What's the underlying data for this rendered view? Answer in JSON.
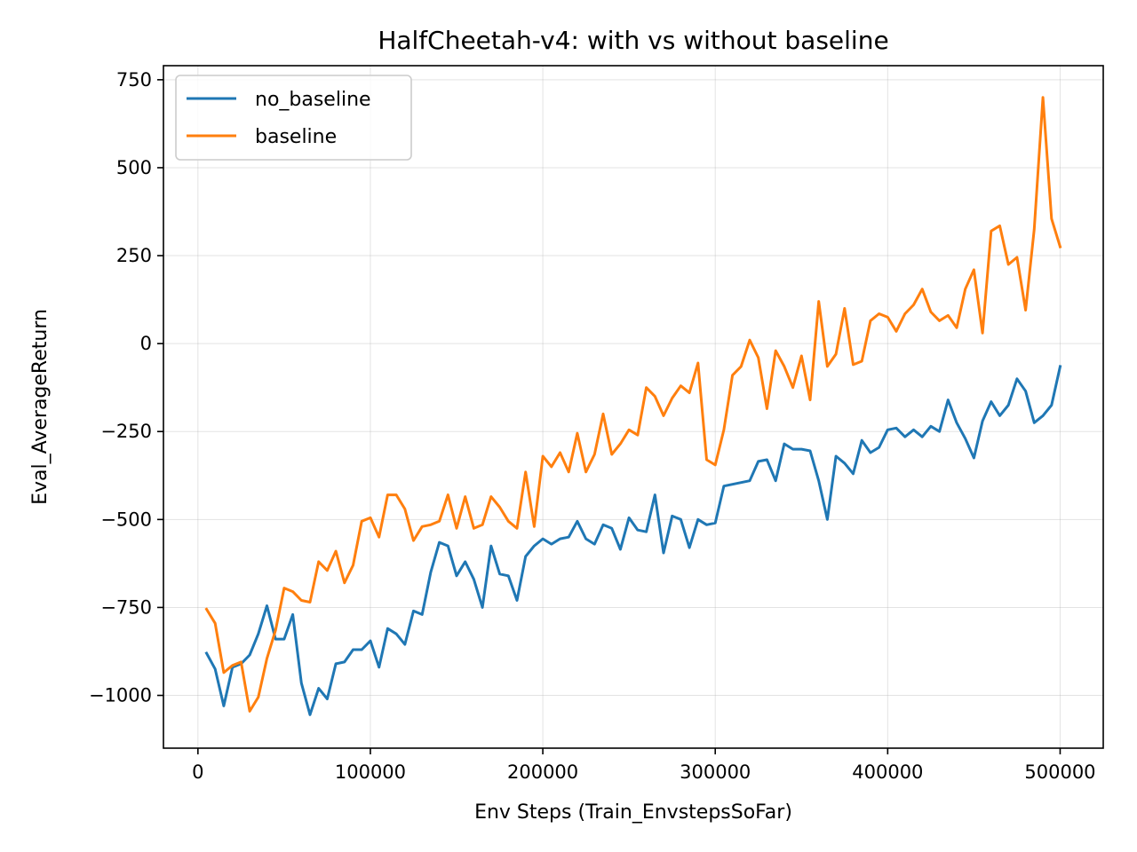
{
  "chart_data": {
    "type": "line",
    "title": "HalfCheetah-v4: with vs without baseline",
    "xlabel": "Env Steps (Train_EnvstepsSoFar)",
    "ylabel": "Eval_AverageReturn",
    "xlim": [
      -20000,
      525000
    ],
    "ylim": [
      -1150,
      790
    ],
    "xticks": [
      0,
      100000,
      200000,
      300000,
      400000,
      500000
    ],
    "xtick_labels": [
      "0",
      "100000",
      "200000",
      "300000",
      "400000",
      "500000"
    ],
    "yticks": [
      -1000,
      -750,
      -500,
      -250,
      0,
      250,
      500,
      750
    ],
    "ytick_labels": [
      "−1000",
      "−750",
      "−500",
      "−250",
      "0",
      "250",
      "500",
      "750"
    ],
    "grid": true,
    "legend_position": "top-left",
    "x": [
      5000,
      10000,
      15000,
      20000,
      25000,
      30000,
      35000,
      40000,
      45000,
      50000,
      55000,
      60000,
      65000,
      70000,
      75000,
      80000,
      85000,
      90000,
      95000,
      100000,
      105000,
      110000,
      115000,
      120000,
      125000,
      130000,
      135000,
      140000,
      145000,
      150000,
      155000,
      160000,
      165000,
      170000,
      175000,
      180000,
      185000,
      190000,
      195000,
      200000,
      205000,
      210000,
      215000,
      220000,
      225000,
      230000,
      235000,
      240000,
      245000,
      250000,
      255000,
      260000,
      265000,
      270000,
      275000,
      280000,
      285000,
      290000,
      295000,
      300000,
      305000,
      310000,
      315000,
      320000,
      325000,
      330000,
      335000,
      340000,
      345000,
      350000,
      355000,
      360000,
      365000,
      370000,
      375000,
      380000,
      385000,
      390000,
      395000,
      400000,
      405000,
      410000,
      415000,
      420000,
      425000,
      430000,
      435000,
      440000,
      445000,
      450000,
      455000,
      460000,
      465000,
      470000,
      475000,
      480000,
      485000,
      490000,
      495000,
      500000
    ],
    "series": [
      {
        "name": "no_baseline",
        "color": "#1f77b4",
        "values": [
          -880,
          -925,
          -1030,
          -920,
          -910,
          -885,
          -825,
          -745,
          -840,
          -840,
          -770,
          -965,
          -1055,
          -980,
          -1010,
          -910,
          -905,
          -870,
          -870,
          -845,
          -920,
          -810,
          -825,
          -855,
          -760,
          -770,
          -650,
          -565,
          -575,
          -660,
          -620,
          -670,
          -750,
          -575,
          -655,
          -660,
          -730,
          -605,
          -575,
          -555,
          -570,
          -555,
          -550,
          -505,
          -555,
          -570,
          -515,
          -525,
          -585,
          -495,
          -530,
          -535,
          -430,
          -595,
          -490,
          -500,
          -580,
          -500,
          -515,
          -510,
          -405,
          -400,
          -395,
          -390,
          -335,
          -330,
          -390,
          -285,
          -300,
          -300,
          -305,
          -390,
          -500,
          -320,
          -340,
          -370,
          -275,
          -310,
          -295,
          -245,
          -240,
          -265,
          -245,
          -265,
          -235,
          -250,
          -160,
          -225,
          -270,
          -325,
          -220,
          -165,
          -205,
          -175,
          -100,
          -135,
          -225,
          -205,
          -175,
          -65
        ]
      },
      {
        "name": "baseline",
        "color": "#ff7f0e",
        "values": [
          -755,
          -795,
          -935,
          -915,
          -905,
          -1045,
          -1005,
          -895,
          -815,
          -695,
          -705,
          -730,
          -735,
          -620,
          -645,
          -590,
          -680,
          -630,
          -505,
          -495,
          -550,
          -430,
          -430,
          -470,
          -560,
          -520,
          -515,
          -505,
          -430,
          -525,
          -435,
          -525,
          -515,
          -435,
          -465,
          -505,
          -525,
          -365,
          -520,
          -320,
          -350,
          -310,
          -365,
          -255,
          -365,
          -315,
          -200,
          -315,
          -285,
          -245,
          -260,
          -125,
          -150,
          -205,
          -155,
          -120,
          -140,
          -55,
          -330,
          -345,
          -245,
          -90,
          -65,
          10,
          -40,
          -185,
          -20,
          -65,
          -125,
          -35,
          -160,
          120,
          -65,
          -30,
          100,
          -60,
          -50,
          65,
          85,
          75,
          35,
          85,
          110,
          155,
          90,
          65,
          80,
          45,
          155,
          210,
          30,
          320,
          335,
          225,
          245,
          95,
          325,
          700,
          355,
          275
        ]
      }
    ]
  }
}
